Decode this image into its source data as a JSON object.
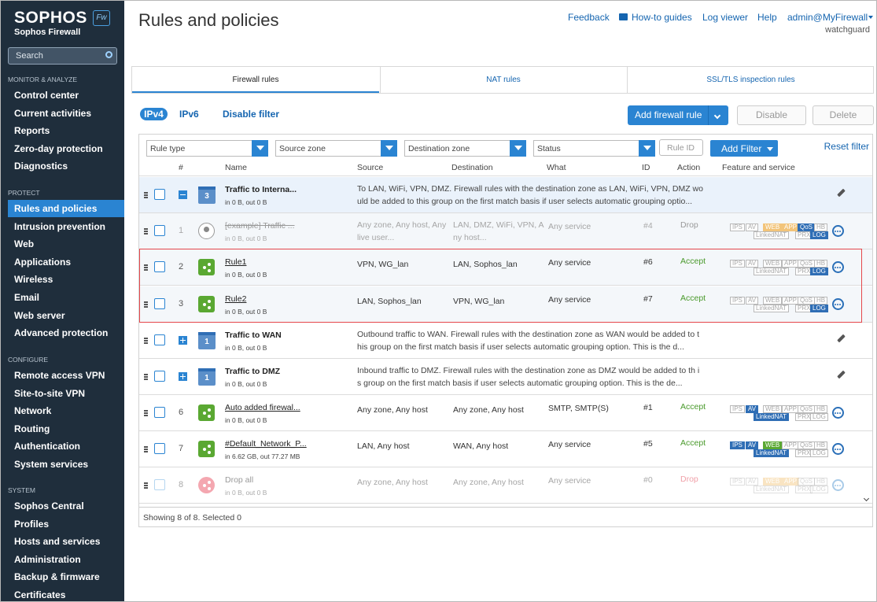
{
  "sidebar": {
    "brand": "SOPHOS",
    "badge": "Fw",
    "product": "Sophos Firewall",
    "search": "Search",
    "sections": [
      {
        "title": "MONITOR & ANALYZE",
        "items": [
          "Control center",
          "Current activities",
          "Reports",
          "Zero-day protection",
          "Diagnostics"
        ]
      },
      {
        "title": "PROTECT",
        "items": [
          "Rules and policies",
          "Intrusion prevention",
          "Web",
          "Applications",
          "Wireless",
          "Email",
          "Web server",
          "Advanced protection"
        ]
      },
      {
        "title": "CONFIGURE",
        "items": [
          "Remote access VPN",
          "Site-to-site VPN",
          "Network",
          "Routing",
          "Authentication",
          "System services"
        ]
      },
      {
        "title": "SYSTEM",
        "items": [
          "Sophos Central",
          "Profiles",
          "Hosts and services",
          "Administration",
          "Backup & firmware",
          "Certificates"
        ]
      }
    ]
  },
  "header": {
    "title": "Rules and policies",
    "links": [
      "Feedback",
      "How-to guides",
      "Log viewer",
      "Help",
      "admin@MyFirewall"
    ],
    "user_sub": "watchguard"
  },
  "tabs": [
    "Firewall rules",
    "NAT rules",
    "SSL/TLS inspection rules"
  ],
  "toolbar": {
    "ip_versions": [
      "IPv4",
      "IPv6"
    ],
    "disable_filter": "Disable filter",
    "buttons": [
      "Add firewall rule",
      "Disable",
      "Delete"
    ]
  },
  "filters": {
    "dropdowns": [
      "Rule type",
      "Source zone",
      "Destination zone",
      "Status"
    ],
    "rule_id": "Rule ID",
    "add_filter": "Add Filter",
    "reset_filter": "Reset filter"
  },
  "table": {
    "columns": [
      "#",
      "Name",
      "Source",
      "Destination",
      "What",
      "ID",
      "Action",
      "Feature and service"
    ],
    "rows": [
      {
        "kind": "group",
        "expanded": true,
        "count": 3,
        "name": "Traffic to Interna...",
        "stats": "in 0 B, out 0 B",
        "description": "To LAN, WiFi, VPN, DMZ. Firewall rules with the destination zone as LAN, WiFi, VPN, DMZ would be added to this group on the first match basis if user selects automatic grouping optio..."
      },
      {
        "kind": "rule",
        "enabled": false,
        "icon": "user",
        "num": 1,
        "name": "[example] Traffic ...",
        "stats": "in 0 B, out 0 B",
        "source": "Any zone, Any host, Any live user...",
        "destination": "LAN, DMZ, WiFi, VPN, Any host...",
        "what": "Any service",
        "id": "#4",
        "action": "Drop",
        "features": [
          "IPS",
          "AV",
          "WEB",
          "APP",
          "QoS",
          "HB",
          "LinkedNAT",
          "PRX",
          "LOG"
        ],
        "feature_styles": [
          "off",
          "off",
          "orange",
          "orange",
          "on",
          "off",
          "off",
          "off",
          "on"
        ]
      },
      {
        "kind": "rule",
        "enabled": true,
        "icon": "share",
        "num": 2,
        "name": "Rule1",
        "stats": "in 0 B, out 0 B",
        "source": "VPN, WG_lan",
        "destination": "LAN, Sophos_lan",
        "what": "Any service",
        "id": "#6",
        "action": "Accept",
        "features": [
          "IPS",
          "AV",
          "WEB",
          "APP",
          "QoS",
          "HB",
          "LinkedNAT",
          "PRX",
          "LOG"
        ],
        "feature_styles": [
          "off",
          "off",
          "off",
          "off",
          "off",
          "off",
          "off",
          "off",
          "on"
        ]
      },
      {
        "kind": "rule",
        "enabled": true,
        "icon": "share",
        "num": 3,
        "name": "Rule2",
        "stats": "in 0 B, out 0 B",
        "source": "LAN, Sophos_lan",
        "destination": "VPN, WG_lan",
        "what": "Any service",
        "id": "#7",
        "action": "Accept",
        "features": [
          "IPS",
          "AV",
          "WEB",
          "APP",
          "QoS",
          "HB",
          "LinkedNAT",
          "PRX",
          "LOG"
        ],
        "feature_styles": [
          "off",
          "off",
          "off",
          "off",
          "off",
          "off",
          "off",
          "off",
          "on"
        ]
      },
      {
        "kind": "group",
        "expanded": false,
        "count": 1,
        "name": "Traffic to WAN",
        "stats": "in 0 B, out 0 B",
        "description": "Outbound traffic to WAN. Firewall rules with the destination zone as WAN would be added to this group on the first match basis if user selects automatic grouping option. This is the d..."
      },
      {
        "kind": "group",
        "expanded": false,
        "count": 1,
        "name": "Traffic to DMZ",
        "stats": "in 0 B, out 0 B",
        "description": "Inbound traffic to DMZ. Firewall rules with the destination zone as DMZ would be added to th is group on the first match basis if user selects automatic grouping option. This is the de..."
      },
      {
        "kind": "rule",
        "enabled": true,
        "icon": "share",
        "num": 6,
        "name": "Auto added firewal...",
        "stats": "in 0 B, out 0 B",
        "source": "Any zone, Any host",
        "destination": "Any zone, Any host",
        "what": "SMTP, SMTP(S)",
        "id": "#1",
        "action": "Accept",
        "features": [
          "IPS",
          "AV",
          "WEB",
          "APP",
          "QoS",
          "HB",
          "LinkedNAT",
          "PRX",
          "LOG"
        ],
        "feature_styles": [
          "off",
          "on",
          "off",
          "off",
          "off",
          "off",
          "on",
          "off",
          "off"
        ]
      },
      {
        "kind": "rule",
        "enabled": true,
        "icon": "share",
        "num": 7,
        "name": "#Default_Network_P...",
        "stats": "in 6.62 GB, out 77.27 MB",
        "source": "LAN, Any host",
        "destination": "WAN, Any host",
        "what": "Any service",
        "id": "#5",
        "action": "Accept",
        "features": [
          "IPS",
          "AV",
          "WEB",
          "APP",
          "QoS",
          "HB",
          "LinkedNAT",
          "PRX",
          "LOG"
        ],
        "feature_styles": [
          "on",
          "on",
          "green",
          "off",
          "off",
          "off",
          "on",
          "off",
          "off"
        ]
      },
      {
        "kind": "rule",
        "enabled": false,
        "icon": "drop",
        "num": 8,
        "name": "Drop all",
        "stats": "in 0 B, out 0 B",
        "source": "Any zone, Any host",
        "destination": "Any zone, Any host",
        "what": "Any service",
        "id": "#0",
        "action": "Drop",
        "features": [
          "IPS",
          "AV",
          "WEB",
          "APP",
          "QoS",
          "HB",
          "LinkedNAT",
          "PRX",
          "LOG"
        ],
        "feature_styles": [
          "off",
          "off",
          "orange",
          "orange",
          "off",
          "off",
          "off",
          "off",
          "off"
        ]
      }
    ],
    "footer": "Showing 8 of 8. Selected 0"
  }
}
